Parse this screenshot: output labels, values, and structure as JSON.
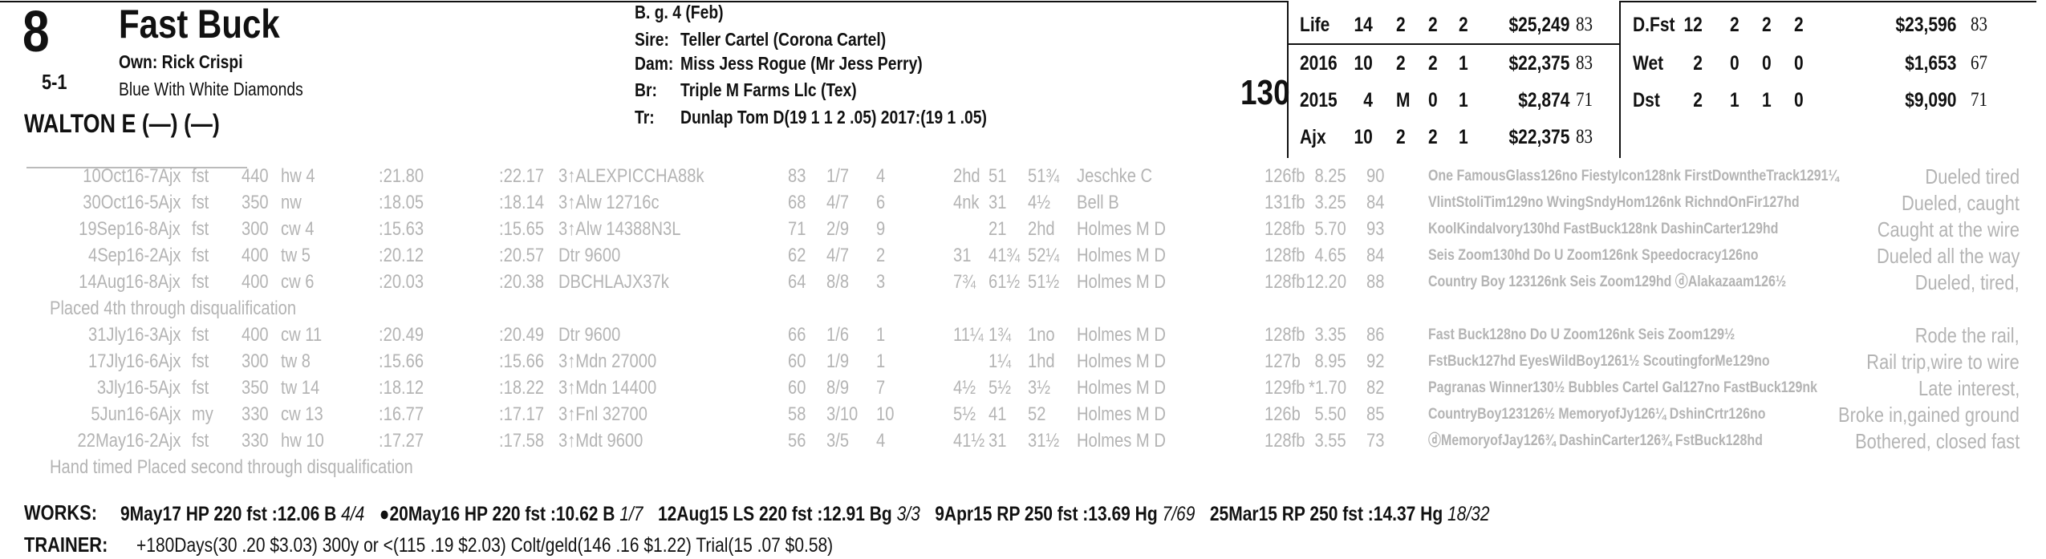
{
  "header": {
    "number": "8",
    "name": "Fast Buck",
    "owner": "Own: Rick Crispi",
    "odds": "5-1",
    "silks": "Blue With White Diamonds",
    "jockey": "WALTON E (—) (—)"
  },
  "breeding": {
    "age": "B. g. 4 (Feb)",
    "sire_label": "Sire:",
    "sire": "Teller Cartel (Corona Cartel)",
    "dam_label": "Dam:",
    "dam": "Miss Jess Rogue (Mr Jess Perry)",
    "br_label": "Br:",
    "br": "Triple M Farms Llc (Tex)",
    "tr_label": "Tr:",
    "tr": "Dunlap Tom D(19 1 1 2 .05)  2017:(19 1 .05)"
  },
  "weight": "130",
  "stats": {
    "left": [
      [
        "Life",
        "14",
        "2",
        "2",
        "2",
        "$25,249",
        "83"
      ],
      [
        "2016",
        "10",
        "2",
        "2",
        "1",
        "$22,375",
        "83"
      ],
      [
        "2015",
        "4",
        "M",
        "0",
        "1",
        "$2,874",
        "71"
      ],
      [
        "Ajx",
        "10",
        "2",
        "2",
        "1",
        "$22,375",
        "83"
      ]
    ],
    "right": [
      [
        "D.Fst",
        "12",
        "2",
        "2",
        "2",
        "$23,596",
        "83"
      ],
      [
        "Wet",
        "2",
        "0",
        "0",
        "0",
        "$1,653",
        "67"
      ],
      [
        "Dst",
        "2",
        "1",
        "1",
        "0",
        "$9,090",
        "71"
      ]
    ]
  },
  "past_performances": [
    {
      "cells": [
        "10Oct16-7Ajx",
        "fst",
        "440",
        "hw 4",
        ":21.80",
        ":22.17",
        "3↑ALEXPICCHA88k",
        "83",
        "1/7",
        "4",
        "2hd",
        "51",
        "51¾",
        "Jeschke C",
        "126fb",
        "8.25",
        "90",
        "One FamousGlass126no FiestyIcon128nk FirstDowntheTrack1291¼",
        "Dueled tired"
      ]
    },
    {
      "cells": [
        "30Oct16-5Ajx",
        "fst",
        "350",
        "nw",
        ":18.05",
        ":18.14",
        "3↑Alw 12716c",
        "68",
        "4/7",
        "6",
        "4nk",
        "31",
        "4½",
        "Bell B",
        "131fb",
        "3.25",
        "84",
        "VlintStoliTim129no WvingSndyHom126nk RichndOnFir127hd",
        "Dueled, caught"
      ]
    },
    {
      "cells": [
        "19Sep16-8Ajx",
        "fst",
        "300",
        "cw 4",
        ":15.63",
        ":15.65",
        "3↑Alw 14388N3L",
        "71",
        "2/9",
        "9",
        "",
        "21",
        "2hd",
        "Holmes M D",
        "128fb",
        "5.70",
        "93",
        "KoolKindaIvory130hd FastBuck128nk DashinCarter129hd",
        "Caught at the wire"
      ]
    },
    {
      "cells": [
        "4Sep16-2Ajx",
        "fst",
        "400",
        "tw 5",
        ":20.12",
        ":20.57",
        "Dtr 9600",
        "62",
        "4/7",
        "2",
        "31",
        "41¾",
        "52¼",
        "Holmes M D",
        "128fb",
        "4.65",
        "84",
        "Seis Zoom130hd Do U Zoom126nk Speedocracy126no",
        "Dueled all the way"
      ]
    },
    {
      "cells": [
        "14Aug16-8Ajx",
        "fst",
        "400",
        "cw 6",
        ":20.03",
        ":20.38",
        "DBCHLAJX37k",
        "64",
        "8/8",
        "3",
        "7¾",
        "61½",
        "51½",
        "Holmes M D",
        "128fb",
        "12.20",
        "88",
        "Country Boy 123126nk Seis Zoom129hd ⓓAlakazaam126½",
        "Dueled, tired,"
      ],
      "note": "Placed 4th through disqualification"
    },
    {
      "cells": [
        "31Jly16-3Ajx",
        "fst",
        "400",
        "cw 11",
        ":20.49",
        ":20.49",
        "Dtr 9600",
        "66",
        "1/6",
        "1",
        "11¼",
        "1¾",
        "1no",
        "Holmes M D",
        "128fb",
        "3.35",
        "86",
        "Fast Buck128no Do U Zoom126nk Seis Zoom129½",
        "Rode the rail,"
      ]
    },
    {
      "cells": [
        "17Jly16-6Ajx",
        "fst",
        "300",
        "tw 8",
        ":15.66",
        ":15.66",
        "3↑Mdn 27000",
        "60",
        "1/9",
        "1",
        "",
        "1¼",
        "1hd",
        "Holmes M D",
        "127b",
        "8.95",
        "92",
        "FstBuck127hd EyesWildBoy1261½ ScoutingforMe129no",
        "Rail trip,wire to wire"
      ]
    },
    {
      "cells": [
        "3Jly16-5Ajx",
        "fst",
        "350",
        "tw 14",
        ":18.12",
        ":18.22",
        "3↑Mdn 14400",
        "60",
        "8/9",
        "7",
        "4½",
        "5½",
        "3½",
        "Holmes M D",
        "129fb",
        "*1.70",
        "82",
        "Pagranas Winner130½ Bubbles Cartel Gal127no FastBuck129nk",
        "Late interest,"
      ]
    },
    {
      "cells": [
        "5Jun16-6Ajx",
        "my",
        "330",
        "cw 13",
        ":16.77",
        ":17.17",
        "3↑Fnl 32700",
        "58",
        "3/10",
        "10",
        "5½",
        "41",
        "52",
        "Holmes M D",
        "126b",
        "5.50",
        "85",
        "CountryBoy123126½ MemoryofJy126¼ DshinCrtr126no",
        "Broke in,gained ground"
      ]
    },
    {
      "cells": [
        "22May16-2Ajx",
        "fst",
        "330",
        "hw 10",
        ":17.27",
        ":17.58",
        "3↑Mdt 9600",
        "56",
        "3/5",
        "4",
        "41½",
        "31",
        "31½",
        "Holmes M D",
        "128fb",
        "3.55",
        "73",
        "ⓓMemoryofJay126¾ DashinCarter126¾ FstBuck128hd",
        "Bothered, closed fast"
      ],
      "note": "Hand timed Placed second through disqualification"
    }
  ],
  "works": {
    "label": "WORKS:",
    "items": [
      {
        "text": "9May17 HP 220 fst :12.06 B",
        "rank": "4/4"
      },
      {
        "text": "●20May16 HP 220 fst :10.62 B",
        "rank": "1/7"
      },
      {
        "text": "12Aug15 LS 220 fst :12.91 Bg",
        "rank": "3/3"
      },
      {
        "text": "9Apr15 RP 250 fst :13.69 Hg",
        "rank": "7/69"
      },
      {
        "text": "25Mar15 RP 250 fst :14.37 Hg",
        "rank": "18/32"
      }
    ]
  },
  "trainer": {
    "label": "TRAINER:",
    "text": "+180Days(30 .20 $3.03) 300y or <(115 .19 $2.03) Colt/geld(146 .16 $1.22) Trial(15 .07 $0.58)"
  }
}
